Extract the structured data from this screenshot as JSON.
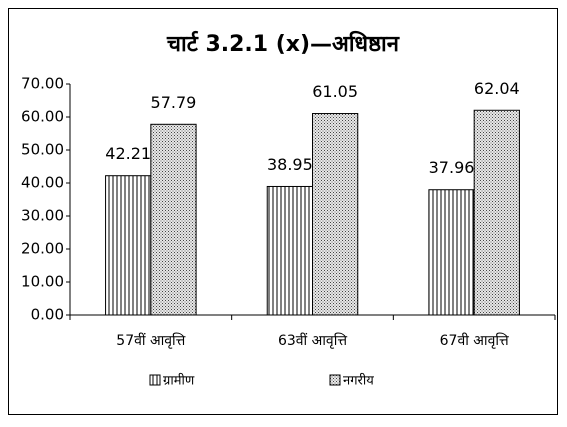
{
  "chart_data": {
    "type": "bar",
    "title": "चार्ट 3.2.1 (x)—अधिष्ठान",
    "categories": [
      "57वीं आवृत्ति",
      "63वीं आवृत्ति",
      "67वी आवृत्ति"
    ],
    "series": [
      {
        "name": "ग्रामीण",
        "color": "#000000",
        "pattern": "vertical-stripes",
        "values": [
          42.21,
          38.95,
          37.96
        ]
      },
      {
        "name": "नगरीय",
        "color": "#000000",
        "pattern": "dots",
        "values": [
          57.79,
          61.05,
          62.04
        ]
      }
    ],
    "ylim": [
      0,
      70
    ],
    "yticks": [
      {
        "value": 0,
        "label": "0.00"
      },
      {
        "value": 10,
        "label": "10.00"
      },
      {
        "value": 20,
        "label": "20.00"
      },
      {
        "value": 30,
        "label": "30.00"
      },
      {
        "value": 40,
        "label": "40.00"
      },
      {
        "value": 50,
        "label": "50.00"
      },
      {
        "value": 60,
        "label": "60.00"
      },
      {
        "value": 70,
        "label": "70.00"
      }
    ],
    "legend": "bottom"
  }
}
